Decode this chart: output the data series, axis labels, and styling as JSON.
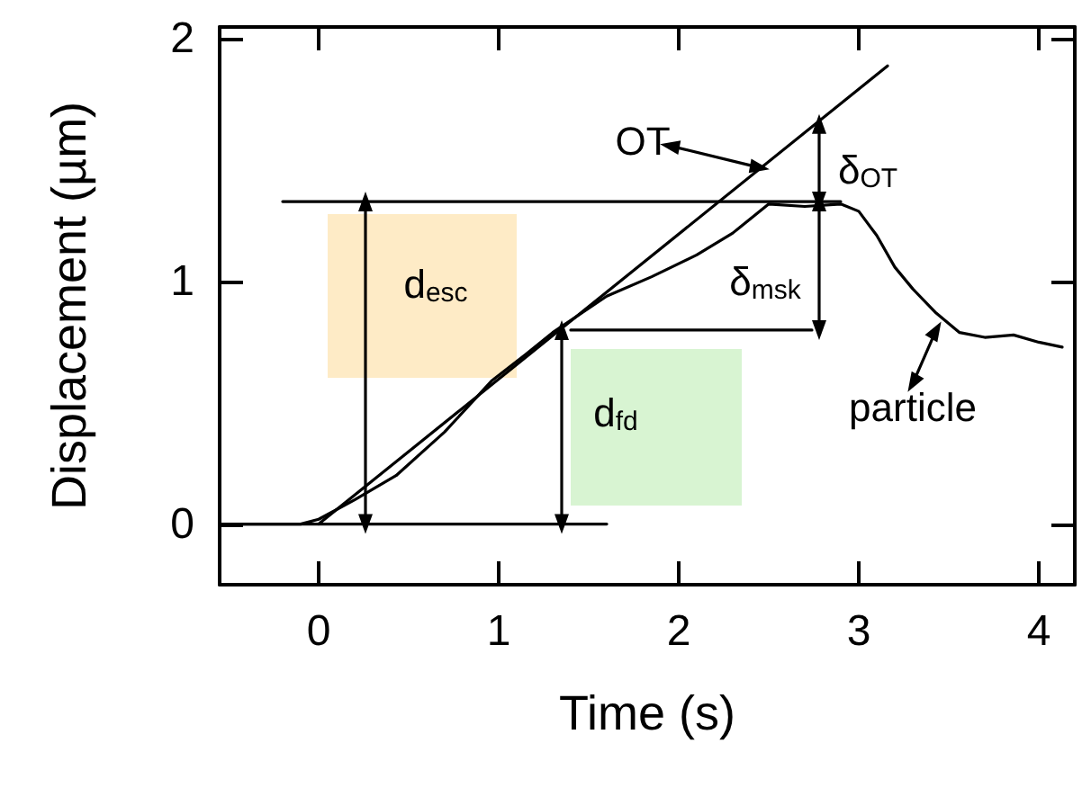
{
  "chart_data": {
    "type": "line",
    "xlabel": "Time (s)",
    "ylabel": "Displacement (µm)",
    "xlim": [
      -0.55,
      4.2
    ],
    "ylim": [
      -0.25,
      2.05
    ],
    "xticks": [
      0,
      1,
      2,
      3,
      4
    ],
    "yticks": [
      0,
      1,
      2
    ],
    "grid": false,
    "line_style": "solid",
    "series": [
      {
        "color": "#000000",
        "x": [
          -0.55,
          0,
          3.16
        ],
        "values": [
          0,
          0,
          1.89
        ]
      },
      {
        "color": "#000000",
        "x": [
          -0.55,
          -0.1,
          0,
          0.2,
          0.43,
          0.7,
          0.96,
          1.15,
          1.3,
          1.6,
          1.85,
          2.1,
          2.3,
          2.5,
          2.7,
          2.9,
          3.0,
          3.1,
          3.2,
          3.3,
          3.43,
          3.56,
          3.7,
          3.86,
          4.0,
          4.13
        ],
        "values": [
          0,
          0,
          0.02,
          0.1,
          0.2,
          0.38,
          0.59,
          0.7,
          0.79,
          0.94,
          1.02,
          1.11,
          1.2,
          1.32,
          1.31,
          1.32,
          1.29,
          1.19,
          1.06,
          0.97,
          0.87,
          0.79,
          0.77,
          0.78,
          0.75,
          0.73
        ]
      },
      {
        "color": "#000000",
        "x": [
          -0.2,
          2.9
        ],
        "values": [
          1.33,
          1.33
        ]
      },
      {
        "color": "#000000",
        "marker": "none",
        "x": [
          1.4,
          2.74
        ],
        "values": [
          0.8,
          0.8
        ]
      },
      {
        "color": "#000000",
        "x": [
          0,
          1.6
        ],
        "values": [
          0,
          0
        ]
      },
      {
        "color": "#000000",
        "marker": "triangle",
        "x": [
          0.26,
          0.26
        ],
        "values": [
          0,
          1.33
        ]
      },
      {
        "color": "#000000",
        "marker": "triangle",
        "x": [
          1.35,
          1.35
        ],
        "values": [
          0,
          0.8
        ]
      },
      {
        "color": "#000000",
        "marker": "triangle",
        "x": [
          2.78,
          2.78
        ],
        "values": [
          0.8,
          1.33
        ]
      },
      {
        "color": "#000000",
        "marker": "triangle",
        "x": [
          2.78,
          2.78
        ],
        "values": [
          1.33,
          1.65
        ]
      },
      {
        "color": "#000000",
        "marker": "triangle",
        "x": [
          1.95,
          2.45
        ],
        "values": [
          1.56,
          1.47
        ]
      },
      {
        "color": "#000000",
        "marker": "triangle",
        "x": [
          3.3,
          3.43
        ],
        "values": [
          0.58,
          0.8
        ]
      }
    ],
    "annotations": [
      "OT",
      "δ$_{OT}$",
      "d$_{esc}$",
      "δ$_{msk}$",
      "d$_{fd}$",
      "particle"
    ]
  }
}
